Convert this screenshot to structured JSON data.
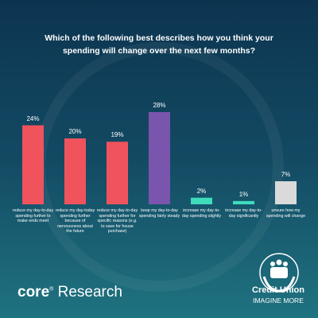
{
  "chart_data": {
    "type": "bar",
    "title": "Which of the following best describes how you think your spending will change over the next few months?",
    "categories": [
      "reduce my day-to-day spending further to make ends meet",
      "reduce my day-today spending further because of nervousness about the future",
      "reduce my day-to-day spending further for specific reasons (e.g. to save for house purchase)",
      "keep my day-to-day spending fairly steady",
      "increase my day-to-day spending slightly",
      "increase my day-to-day significantly",
      "unsure how my spending will change"
    ],
    "values": [
      24,
      20,
      19,
      28,
      2,
      1,
      7
    ],
    "value_labels": [
      "24%",
      "20%",
      "19%",
      "28%",
      "2%",
      "1%",
      "7%"
    ],
    "colors": [
      "#f1535d",
      "#f1535d",
      "#f1535d",
      "#7a55ad",
      "#3fdcbc",
      "#3fdcbc",
      "#dadada"
    ]
  },
  "footer": {
    "brand": "core",
    "registered": "®",
    "brand_suffix": "Research",
    "logo_name": "Credit Union",
    "logo_tagline": "IMAGINE MORE"
  }
}
